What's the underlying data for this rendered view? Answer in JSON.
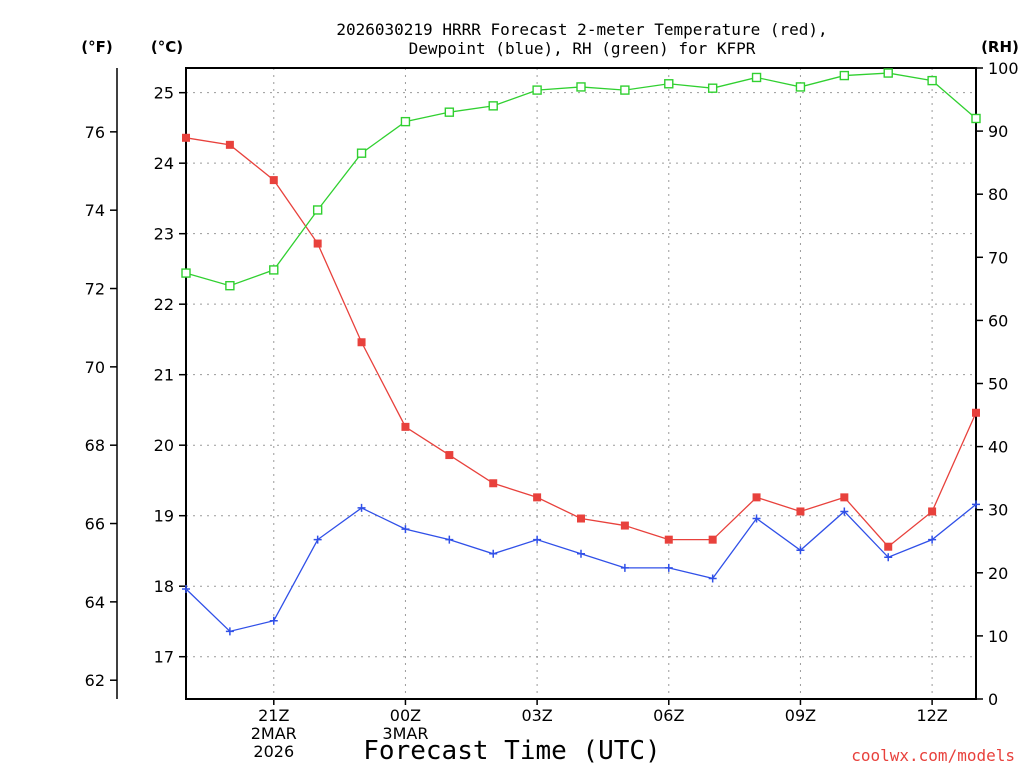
{
  "title": {
    "line1": "2026030219 HRRR Forecast 2-meter Temperature (red),",
    "line2": "Dewpoint (blue), RH (green) for KFPR"
  },
  "units": {
    "fahrenheit": "(°F)",
    "celsius": "(°C)",
    "rh": "(RH)"
  },
  "credit": "coolwx.com/models",
  "colors": {
    "temperature": "#e8413c",
    "dewpoint": "#3050e8",
    "rh": "#30d030",
    "grid": "#9a9a9a"
  },
  "chart_data": {
    "type": "line",
    "xlabel": "Forecast Time (UTC)",
    "x": [
      19,
      20,
      21,
      22,
      23,
      24,
      25,
      26,
      27,
      28,
      29,
      30,
      31,
      32,
      33,
      34,
      35,
      36,
      37
    ],
    "xlim": [
      19,
      37
    ],
    "x_ticks": [
      {
        "x": 21,
        "lines": [
          "21Z",
          "2MAR",
          "2026"
        ]
      },
      {
        "x": 24,
        "lines": [
          "00Z",
          "3MAR"
        ]
      },
      {
        "x": 27,
        "lines": [
          "03Z"
        ]
      },
      {
        "x": 30,
        "lines": [
          "06Z"
        ]
      },
      {
        "x": 33,
        "lines": [
          "09Z"
        ]
      },
      {
        "x": 36,
        "lines": [
          "12Z"
        ]
      }
    ],
    "y_left_celsius": {
      "ylim": [
        16.4,
        25.35
      ],
      "ticks": [
        17,
        18,
        19,
        20,
        21,
        22,
        23,
        24,
        25
      ]
    },
    "y_left_fahrenheit": {
      "ticks": [
        62,
        64,
        66,
        68,
        70,
        72,
        74,
        76
      ]
    },
    "y_right_rh": {
      "ylim": [
        0,
        100
      ],
      "ticks": [
        0,
        10,
        20,
        30,
        40,
        50,
        60,
        70,
        80,
        90,
        100
      ]
    },
    "grid": true,
    "series": [
      {
        "key": "temperature",
        "axis": "celsius",
        "marker": "filled-square",
        "values": [
          24.36,
          24.26,
          23.76,
          22.86,
          21.46,
          20.26,
          19.86,
          19.46,
          19.26,
          18.96,
          18.86,
          18.66,
          18.66,
          19.26,
          19.06,
          19.26,
          18.56,
          19.06,
          20.46
        ]
      },
      {
        "key": "dewpoint",
        "axis": "celsius",
        "marker": "plus",
        "values": [
          17.96,
          17.36,
          17.51,
          18.66,
          19.11,
          18.81,
          18.66,
          18.46,
          18.66,
          18.46,
          18.26,
          18.26,
          18.11,
          18.96,
          18.51,
          19.06,
          18.41,
          18.66,
          19.16
        ]
      },
      {
        "key": "rh",
        "axis": "rh",
        "marker": "open-square",
        "values": [
          67.5,
          65.5,
          68.0,
          77.5,
          86.5,
          91.5,
          93.0,
          94.0,
          96.5,
          97.0,
          96.5,
          97.5,
          96.8,
          98.5,
          97.0,
          98.8,
          99.2,
          98.0,
          92.0
        ]
      }
    ]
  }
}
